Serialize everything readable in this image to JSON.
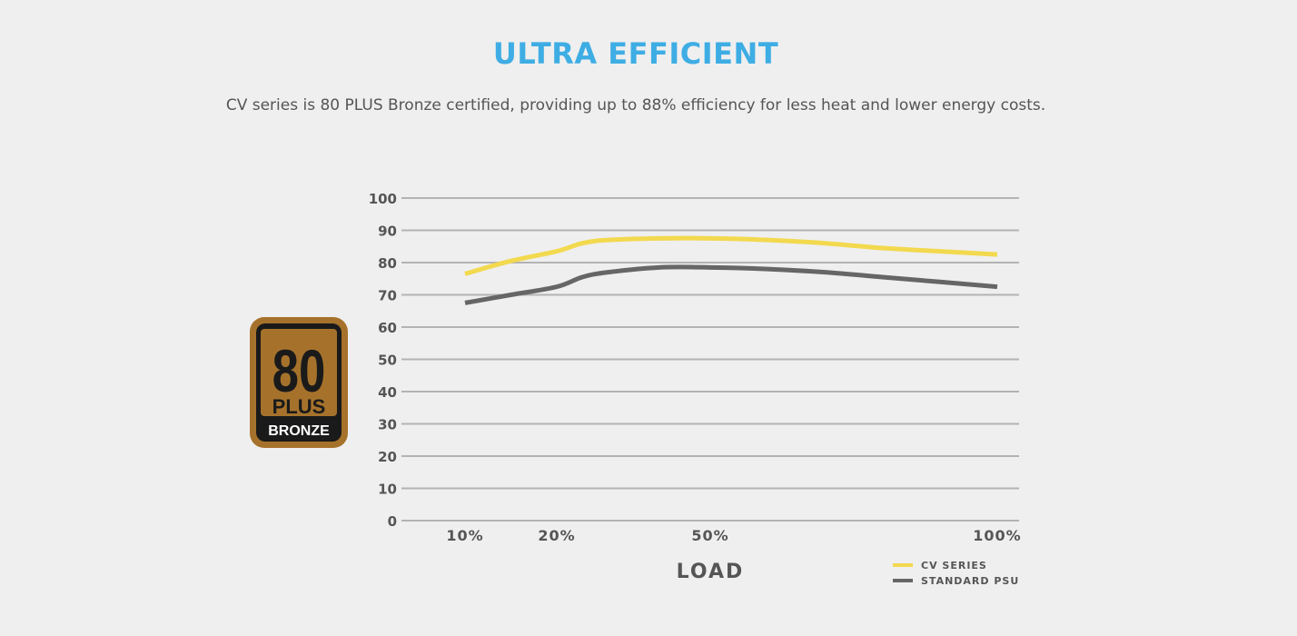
{
  "header": {
    "title": "ULTRA EFFICIENT",
    "subtitle": "CV series is 80 PLUS Bronze certified, providing up to 88% efficiency for less heat and lower energy costs."
  },
  "badge": {
    "number": "80",
    "plus": "PLUS",
    "tier": "BRONZE",
    "colors": {
      "bronze": "#a6722b",
      "inner": "#1a1a1a"
    }
  },
  "chart_data": {
    "type": "line",
    "xlabel": "LOAD",
    "ylabel": "",
    "ylim": [
      0,
      100
    ],
    "yticks": [
      0,
      10,
      20,
      30,
      40,
      50,
      60,
      70,
      80,
      90,
      100
    ],
    "xticks": [
      "10%",
      "20%",
      "50%",
      "100%"
    ],
    "grid": true,
    "legend_position": "bottom-right",
    "series": [
      {
        "name": "CV SERIES",
        "color": "#f2d94e",
        "points": [
          [
            10,
            76.5
          ],
          [
            15,
            80.5
          ],
          [
            20,
            83.5
          ],
          [
            25,
            86.0
          ],
          [
            30,
            87.0
          ],
          [
            40,
            87.5
          ],
          [
            50,
            87.5
          ],
          [
            60,
            87.0
          ],
          [
            70,
            86.0
          ],
          [
            80,
            84.5
          ],
          [
            90,
            83.5
          ],
          [
            100,
            82.5
          ]
        ]
      },
      {
        "name": "STANDARD PSU",
        "color": "#666666",
        "points": [
          [
            10,
            67.5
          ],
          [
            15,
            70.0
          ],
          [
            20,
            72.5
          ],
          [
            25,
            75.5
          ],
          [
            30,
            77.0
          ],
          [
            40,
            78.5
          ],
          [
            50,
            78.5
          ],
          [
            60,
            78.0
          ],
          [
            70,
            77.0
          ],
          [
            80,
            75.5
          ],
          [
            90,
            74.0
          ],
          [
            100,
            72.5
          ]
        ]
      }
    ]
  }
}
